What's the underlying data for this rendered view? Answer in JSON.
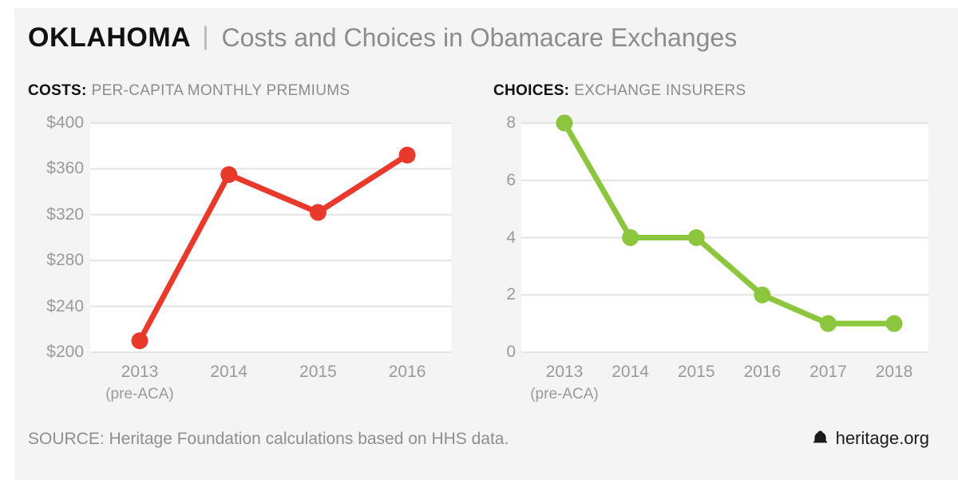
{
  "header": {
    "state": "OKLAHOMA",
    "divider": "|",
    "title": "Costs and Choices in Obamacare Exchanges"
  },
  "colors": {
    "background": "#f4f4f4",
    "page_margin": "#ffffff",
    "plot_background": "#ffffff",
    "gridline": "#e4e4e4",
    "costs_line": "#e8392b",
    "choices_line": "#8cc63f",
    "tick_text": "#9a9a9a",
    "muted_text": "#8c8c8c",
    "dark_text": "#111111"
  },
  "chart_data": [
    {
      "type": "line",
      "id": "costs",
      "label_bold": "COSTS:",
      "label_rest": "PER-CAPITA MONTHLY PREMIUMS",
      "categories": [
        "2013",
        "2014",
        "2015",
        "2016"
      ],
      "category_subs": [
        "(pre-ACA)",
        "",
        "",
        ""
      ],
      "values": [
        210,
        355,
        322,
        372
      ],
      "ylim": [
        200,
        400
      ],
      "yticks": [
        200,
        240,
        280,
        320,
        360,
        400
      ],
      "ytick_labels": [
        "$200",
        "$240",
        "$280",
        "$320",
        "$360",
        "$400"
      ],
      "color": "#e8392b",
      "grid": true,
      "legend": "none"
    },
    {
      "type": "line",
      "id": "choices",
      "label_bold": "CHOICES:",
      "label_rest": "EXCHANGE INSURERS",
      "categories": [
        "2013",
        "2014",
        "2015",
        "2016",
        "2017",
        "2018"
      ],
      "category_subs": [
        "(pre-ACA)",
        "",
        "",
        "",
        "",
        ""
      ],
      "values": [
        8,
        4,
        4,
        2,
        1,
        1
      ],
      "ylim": [
        0,
        8
      ],
      "yticks": [
        0,
        2,
        4,
        6,
        8
      ],
      "ytick_labels": [
        "0",
        "2",
        "4",
        "6",
        "8"
      ],
      "color": "#8cc63f",
      "grid": true,
      "legend": "none"
    }
  ],
  "footer": {
    "source": "SOURCE: Heritage Foundation calculations based on HHS data.",
    "brand": "heritage.org",
    "brand_icon": "liberty-bell-icon"
  }
}
